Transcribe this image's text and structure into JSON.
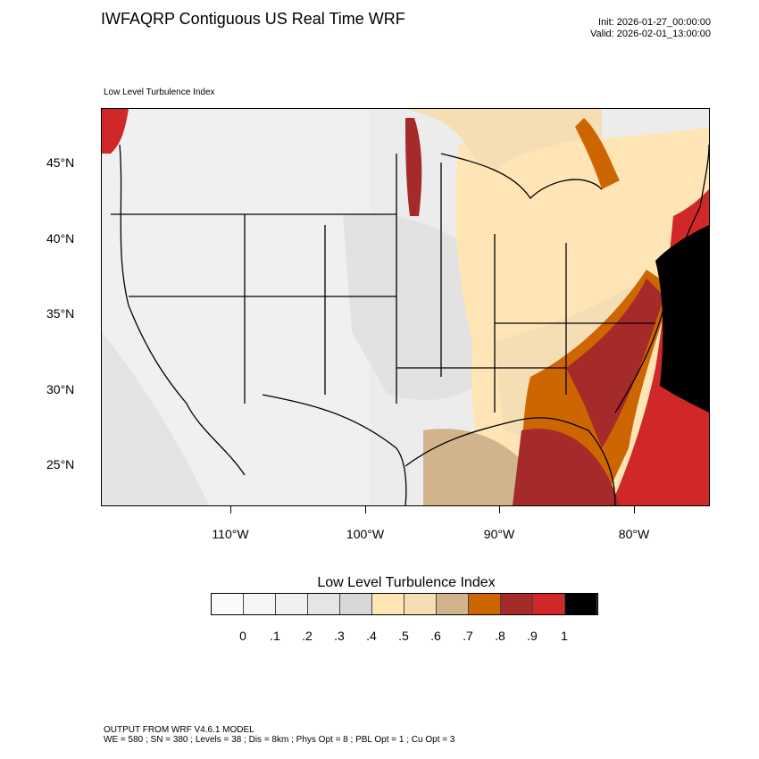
{
  "header": {
    "title": "IWFAQRP Contiguous US Real Time WRF",
    "init": "Init: 2026-01-27_00:00:00",
    "valid": "Valid: 2026-02-01_13:00:00"
  },
  "map": {
    "subtitle": "Low Level Turbulence Index",
    "lat_labels": [
      "45°N",
      "40°N",
      "35°N",
      "30°N",
      "25°N"
    ],
    "lon_labels": [
      "110°W",
      "100°W",
      "90°W",
      "80°W"
    ]
  },
  "colorbar": {
    "title": "Low Level Turbulence Index",
    "colors": [
      "#fafafa",
      "#f5f5f5",
      "#f0f0f0",
      "#e5e5e5",
      "#d7d7d7",
      "#ffe5b5",
      "#f5deb3",
      "#d2b48c",
      "#cd6600",
      "#a52a2a",
      "#d02828",
      "#000000"
    ],
    "labels": [
      "0",
      ".1",
      ".2",
      ".3",
      ".4",
      ".5",
      ".6",
      ".7",
      ".8",
      ".9",
      "1"
    ]
  },
  "footer": {
    "line1": "OUTPUT FROM WRF V4.6.1 MODEL",
    "line2": "WE = 580 ; SN = 380 ; Levels = 38 ; Dis = 8km ; Phys Opt = 8 ; PBL Opt = 1 ; Cu Opt = 3"
  }
}
